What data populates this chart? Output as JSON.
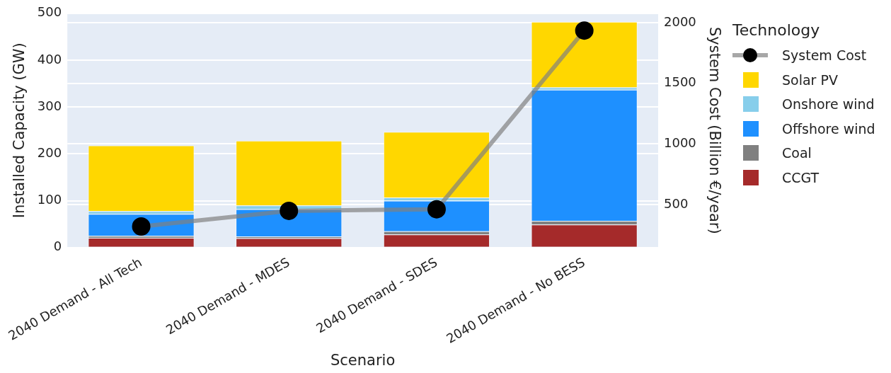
{
  "chart_data": {
    "type": "bar",
    "stacked": true,
    "xlabel": "Scenario",
    "ylabel": "Installed Capacity (GW)",
    "y2label": "System Cost (Billion €/year)",
    "legend_title": "Technology",
    "legend": "right",
    "grid": "y",
    "categories": [
      "2040 Demand - All Tech",
      "2040 Demand - MDES",
      "2040 Demand - SDES",
      "2040 Demand - No BESS"
    ],
    "ylim": [
      0,
      500
    ],
    "yticks": [
      0,
      100,
      200,
      300,
      400,
      500
    ],
    "y2lim": [
      145,
      2077
    ],
    "y2ticks": [
      500,
      1000,
      1500,
      2000
    ],
    "series": [
      {
        "name": "CCGT",
        "color": "#a52a2a",
        "values": [
          21,
          20,
          28,
          49
        ]
      },
      {
        "name": "Coal",
        "color": "#808080",
        "values": [
          4,
          4,
          7,
          8
        ]
      },
      {
        "name": "Offshore wind",
        "color": "#1e90ff",
        "values": [
          47,
          58,
          65,
          280
        ]
      },
      {
        "name": "Onshore wind",
        "color": "#87ceeb",
        "values": [
          6,
          8,
          7,
          5
        ]
      },
      {
        "name": "Solar PV",
        "color": "#ffd700",
        "values": [
          140,
          138,
          140,
          140
        ]
      },
      {
        "name": "System Cost",
        "type": "line",
        "axis": "y2",
        "color": "#808080",
        "marker": "circle",
        "values": [
          319,
          448,
          461,
          1935
        ]
      }
    ]
  }
}
